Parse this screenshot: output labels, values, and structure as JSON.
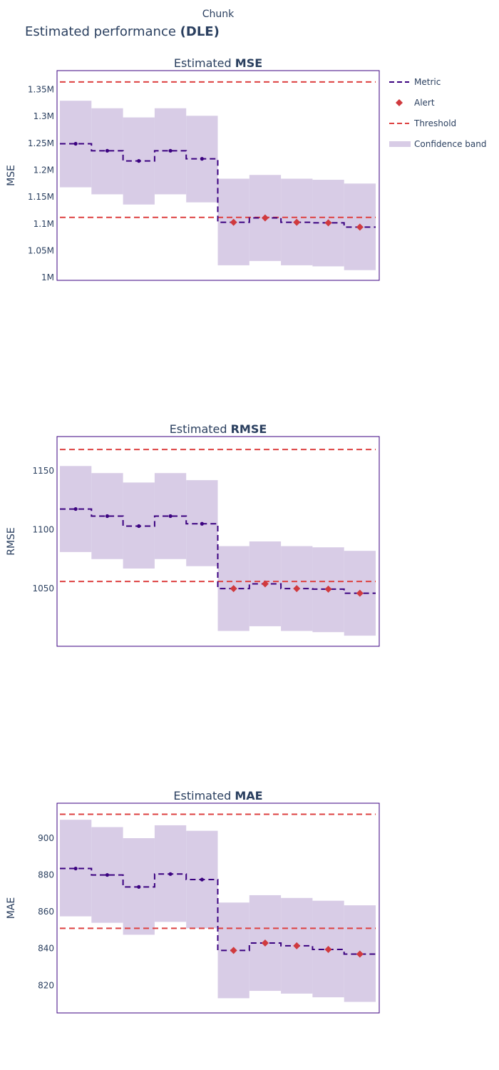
{
  "header": {
    "top_label": "Chunk",
    "title_prefix": "Estimated performance ",
    "title_bold": "(DLE)"
  },
  "legend": {
    "items": [
      {
        "label": "Metric",
        "kind": "metric"
      },
      {
        "label": "Alert",
        "kind": "alert"
      },
      {
        "label": "Threshold",
        "kind": "threshold"
      },
      {
        "label": "Confidence band",
        "kind": "band"
      }
    ]
  },
  "colors": {
    "metric": "#3b0280",
    "alert": "#d03a3e",
    "threshold": "#dd4040",
    "band": "#d8cce6",
    "frame": "#3b0280",
    "text": "#2a3f5f"
  },
  "chart_data": [
    {
      "type": "line",
      "title_prefix": "Estimated ",
      "title_bold": "MSE",
      "ylabel": "MSE",
      "ylim": [
        995000,
        1385000
      ],
      "yticks": [
        1000000,
        1050000,
        1100000,
        1150000,
        1200000,
        1250000,
        1300000,
        1350000
      ],
      "ytick_labels": [
        "1M",
        "1.05M",
        "1.1M",
        "1.15M",
        "1.2M",
        "1.25M",
        "1.3M",
        "1.35M"
      ],
      "chunks": 10,
      "values": [
        1249000,
        1236000,
        1217000,
        1236000,
        1221000,
        1103000,
        1111000,
        1103000,
        1102000,
        1094000
      ],
      "band_upper": [
        1329000,
        1315000,
        1298000,
        1315000,
        1301000,
        1184000,
        1191000,
        1184000,
        1182000,
        1175000
      ],
      "band_lower": [
        1168000,
        1155000,
        1136000,
        1155000,
        1140000,
        1023000,
        1031000,
        1023000,
        1021000,
        1014000
      ],
      "thresholds": [
        1364000,
        1112000
      ],
      "alerts": [
        false,
        false,
        false,
        false,
        false,
        true,
        true,
        true,
        true,
        true
      ]
    },
    {
      "type": "line",
      "title_prefix": "Estimated ",
      "title_bold": "RMSE",
      "ylabel": "RMSE",
      "ylim": [
        1001,
        1179
      ],
      "yticks": [
        1050,
        1100,
        1150
      ],
      "ytick_labels": [
        "1050",
        "1100",
        "1150"
      ],
      "chunks": 10,
      "values": [
        1117.5,
        1111.5,
        1103,
        1111.5,
        1105,
        1050,
        1054,
        1050,
        1049.5,
        1046
      ],
      "band_upper": [
        1154,
        1148,
        1140,
        1148,
        1142,
        1086,
        1090,
        1086,
        1085,
        1082
      ],
      "band_lower": [
        1081,
        1075,
        1067,
        1075,
        1069,
        1014,
        1018,
        1014,
        1013,
        1010
      ],
      "thresholds": [
        1168,
        1056
      ],
      "alerts": [
        false,
        false,
        false,
        false,
        false,
        true,
        true,
        true,
        true,
        true
      ]
    },
    {
      "type": "line",
      "title_prefix": "Estimated ",
      "title_bold": "MAE",
      "ylabel": "MAE",
      "ylim": [
        805,
        919
      ],
      "yticks": [
        820,
        840,
        860,
        880,
        900
      ],
      "ytick_labels": [
        "820",
        "840",
        "860",
        "880",
        "900"
      ],
      "chunks": 10,
      "values": [
        883.5,
        880,
        873.5,
        880.5,
        877.5,
        839,
        843,
        841.5,
        839.5,
        837
      ],
      "band_upper": [
        910,
        906,
        900,
        907,
        904,
        865,
        869,
        867.5,
        866,
        863.5
      ],
      "band_lower": [
        857.5,
        854,
        847.5,
        854.5,
        851,
        813,
        817,
        815.5,
        813.5,
        811
      ],
      "thresholds": [
        913,
        851
      ],
      "alerts": [
        false,
        false,
        false,
        false,
        false,
        true,
        true,
        true,
        true,
        true
      ]
    }
  ]
}
